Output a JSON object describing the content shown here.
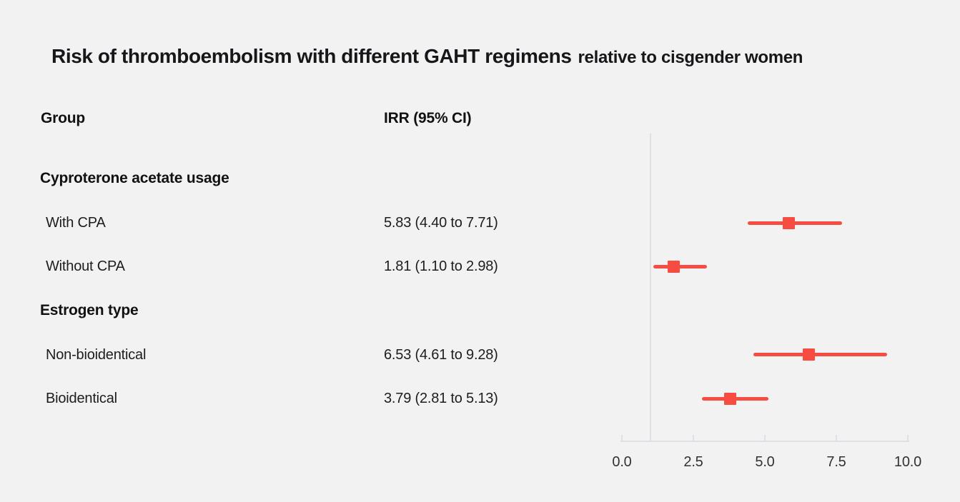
{
  "title": {
    "main": "Risk of thromboembolism with different GAHT regimens",
    "suffix": "relative to cisgender women"
  },
  "columns": {
    "group": "Group",
    "irr": "IRR (95% CI)"
  },
  "rows": [
    {
      "type": "section",
      "label": "Cyproterone acetate usage"
    },
    {
      "type": "item",
      "label": "With CPA",
      "irr_text": "5.83 (4.40 to 7.71)"
    },
    {
      "type": "item",
      "label": "Without CPA",
      "irr_text": "1.81 (1.10 to 2.98)"
    },
    {
      "type": "section",
      "label": "Estrogen type"
    },
    {
      "type": "item",
      "label": "Non-bioidentical",
      "irr_text": "6.53 (4.61 to 9.28)"
    },
    {
      "type": "item",
      "label": "Bioidentical",
      "irr_text": "3.79 (2.81 to 5.13)"
    }
  ],
  "chart_data": {
    "type": "scatter",
    "subtype": "forest-plot",
    "title": "Risk of thromboembolism with different GAHT regimens relative to cisgender women",
    "xlabel": "",
    "xlim": [
      0,
      10
    ],
    "xticks": [
      0,
      2.5,
      5,
      7.5,
      10
    ],
    "xtick_labels": [
      "0.0",
      "2.5",
      "5.0",
      "7.5",
      "10.0"
    ],
    "reference_line_x": 1.0,
    "grid": false,
    "legend": false,
    "points": [
      {
        "group": "Cyproterone acetate usage",
        "label": "With CPA",
        "est": 5.83,
        "lo": 4.4,
        "hi": 7.71
      },
      {
        "group": "Cyproterone acetate usage",
        "label": "Without CPA",
        "est": 1.81,
        "lo": 1.1,
        "hi": 2.98
      },
      {
        "group": "Estrogen type",
        "label": "Non-bioidentical",
        "est": 6.53,
        "lo": 4.61,
        "hi": 9.28
      },
      {
        "group": "Estrogen type",
        "label": "Bioidentical",
        "est": 3.79,
        "lo": 2.81,
        "hi": 5.13
      }
    ],
    "colors": {
      "marker": "#f74c41",
      "axis": "#dde1e6",
      "background": "#f2f2f2",
      "text": "#1d1d20"
    }
  }
}
